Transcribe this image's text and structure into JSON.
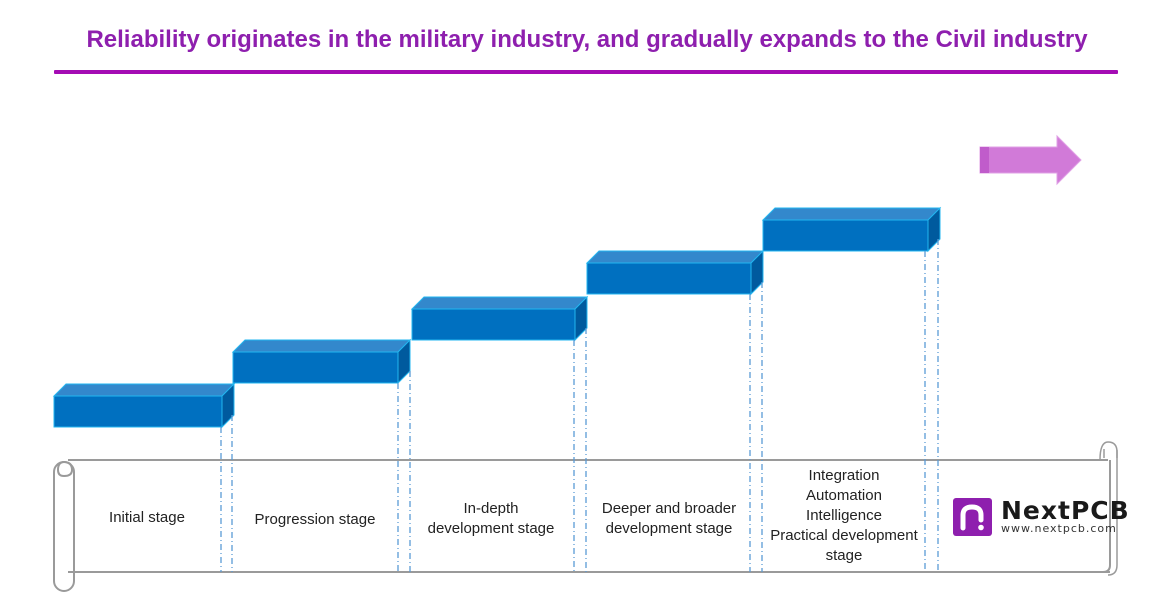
{
  "title": "Reliability originates in the military industry, and gradually expands to the Civil industry",
  "colors": {
    "title": "#8e1fae",
    "rule": "#a40cb4",
    "step_front": "#0070c0",
    "step_top": "#3388cc",
    "step_side": "#005a9e",
    "step_edge": "#22b6f0",
    "arrow": "#d17ad8",
    "guide": "#5b9bd5",
    "scroll": "#9a9a9a"
  },
  "stages": [
    {
      "id": "initial",
      "label": "Initial stage",
      "level": 1
    },
    {
      "id": "progression",
      "label": "Progression stage",
      "level": 2
    },
    {
      "id": "in-depth",
      "label": "In-depth\ndevelopment stage",
      "level": 3
    },
    {
      "id": "deeper-broader",
      "label": "Deeper and broader\ndevelopment stage",
      "level": 4
    },
    {
      "id": "practical",
      "label": "Integration\nAutomation\nIntelligence\nPractical development\nstage",
      "level": 5
    }
  ],
  "direction_arrow": "right-arrow",
  "logo": {
    "name": "NextPCB",
    "url": "www.nextpcb.com",
    "icon": "nextpcb-logo-icon"
  }
}
